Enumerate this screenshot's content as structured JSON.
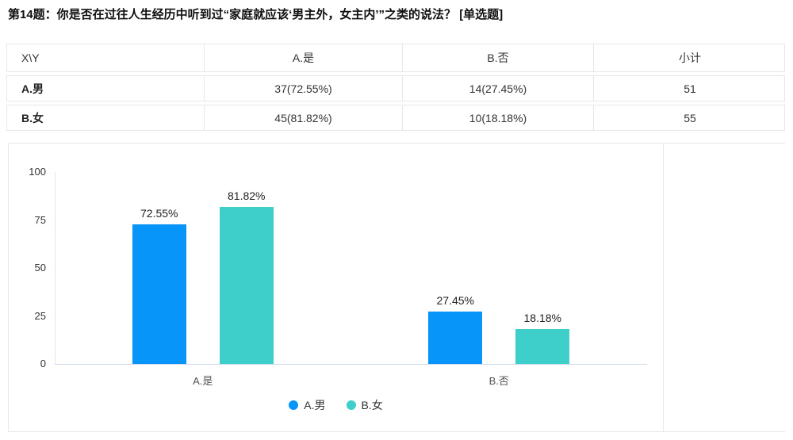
{
  "question": {
    "title": "第14题：你是否在过往人生经历中听到过“家庭就应该‘男主外，女主内’”之类的说法？ [单选题]"
  },
  "table": {
    "headers": [
      "X\\Y",
      "A.是",
      "B.否",
      "小计"
    ],
    "rows": [
      {
        "label": "A.男",
        "cells": [
          "37(72.55%)",
          "14(27.45%)",
          "51"
        ]
      },
      {
        "label": "B.女",
        "cells": [
          "45(81.82%)",
          "10(18.18%)",
          "55"
        ]
      }
    ]
  },
  "chart_data": {
    "type": "bar",
    "title": "",
    "categories": [
      "A.是",
      "B.否"
    ],
    "series": [
      {
        "name": "A.男",
        "color": "#0795f9",
        "values": [
          72.55,
          27.45
        ],
        "labels": [
          "72.55%",
          "27.45%"
        ]
      },
      {
        "name": "B.女",
        "color": "#3ecfcb",
        "values": [
          81.82,
          18.18
        ],
        "labels": [
          "81.82%",
          "18.18%"
        ]
      }
    ],
    "xlabel": "",
    "ylabel": "",
    "ylim": [
      0,
      100
    ],
    "yticks": [
      0,
      25,
      50,
      75,
      100
    ],
    "grid": false,
    "legend_position": "bottom-center",
    "x_axis_line_color": "#ccd6eb",
    "y_axis_line_color": "#e6e6e6"
  }
}
